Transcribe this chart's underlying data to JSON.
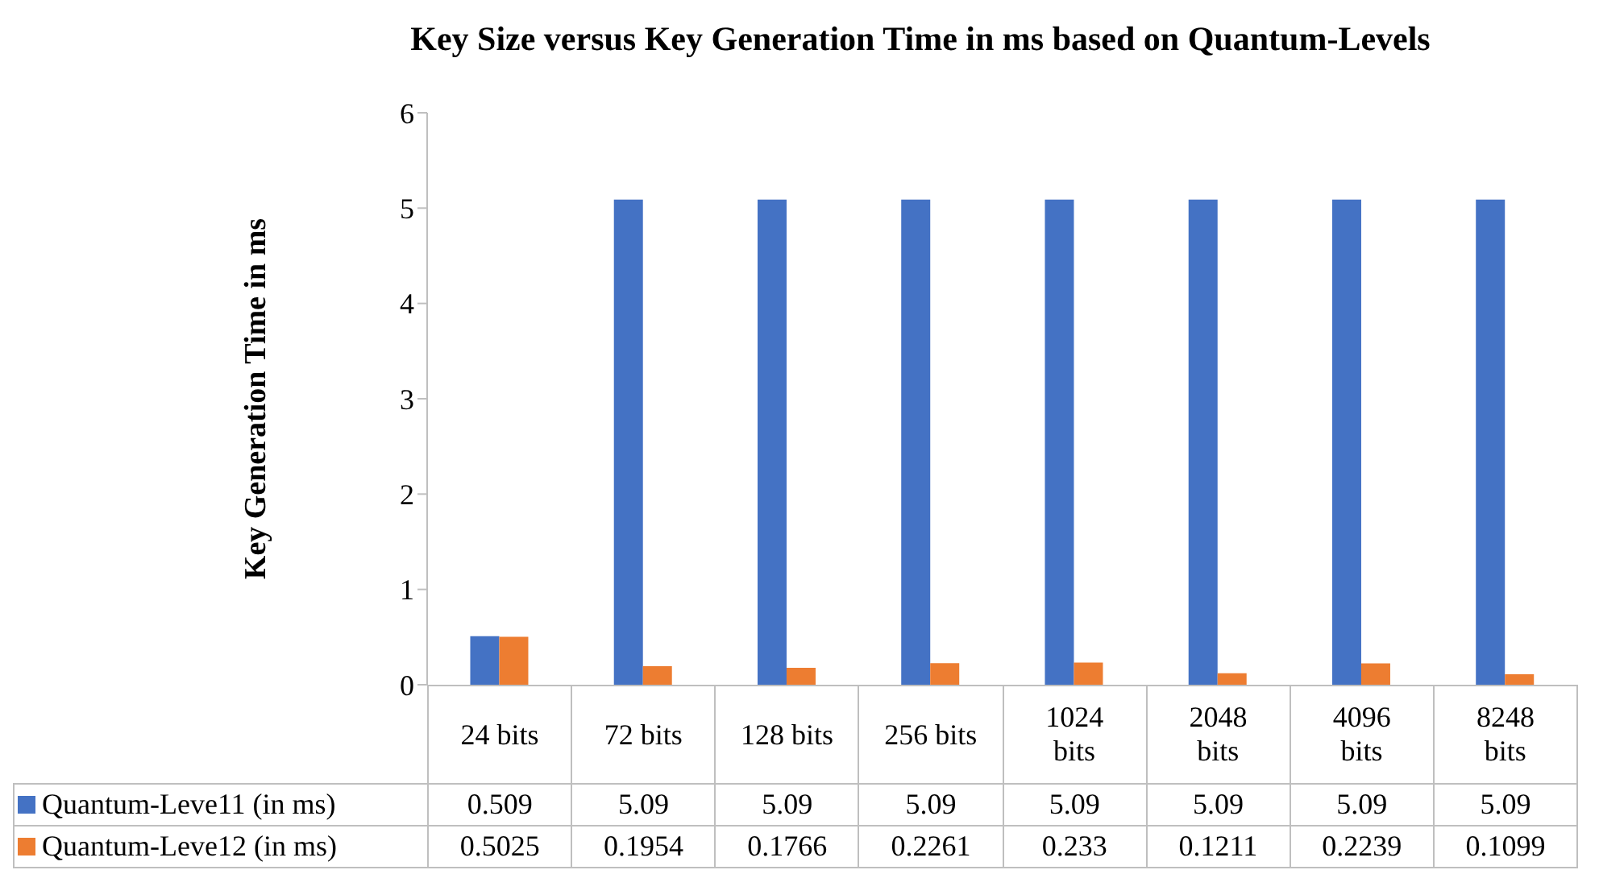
{
  "chart_data": {
    "type": "bar",
    "title": "Key Size versus Key Generation Time in ms based on Quantum-Levels",
    "ylabel": "Key Generation Time in ms",
    "categories": [
      "24 bits",
      "72 bits",
      "128 bits",
      "256 bits",
      "1024 bits",
      "2048 bits",
      "4096 bits",
      "8248 bits"
    ],
    "series": [
      {
        "name": "Quantum-Leve11 (in ms)",
        "color": "#4472c4",
        "values": [
          0.509,
          5.09,
          5.09,
          5.09,
          5.09,
          5.09,
          5.09,
          5.09
        ]
      },
      {
        "name": "Quantum-Leve12 (in ms)",
        "color": "#ed7d31",
        "values": [
          0.5025,
          0.1954,
          0.1766,
          0.2261,
          0.233,
          0.1211,
          0.2239,
          0.1099
        ]
      }
    ],
    "ylim": [
      0,
      6
    ],
    "yticks": [
      0,
      1,
      2,
      3,
      4,
      5,
      6
    ],
    "grid": false,
    "legend": "bottom",
    "data_labels": true
  }
}
